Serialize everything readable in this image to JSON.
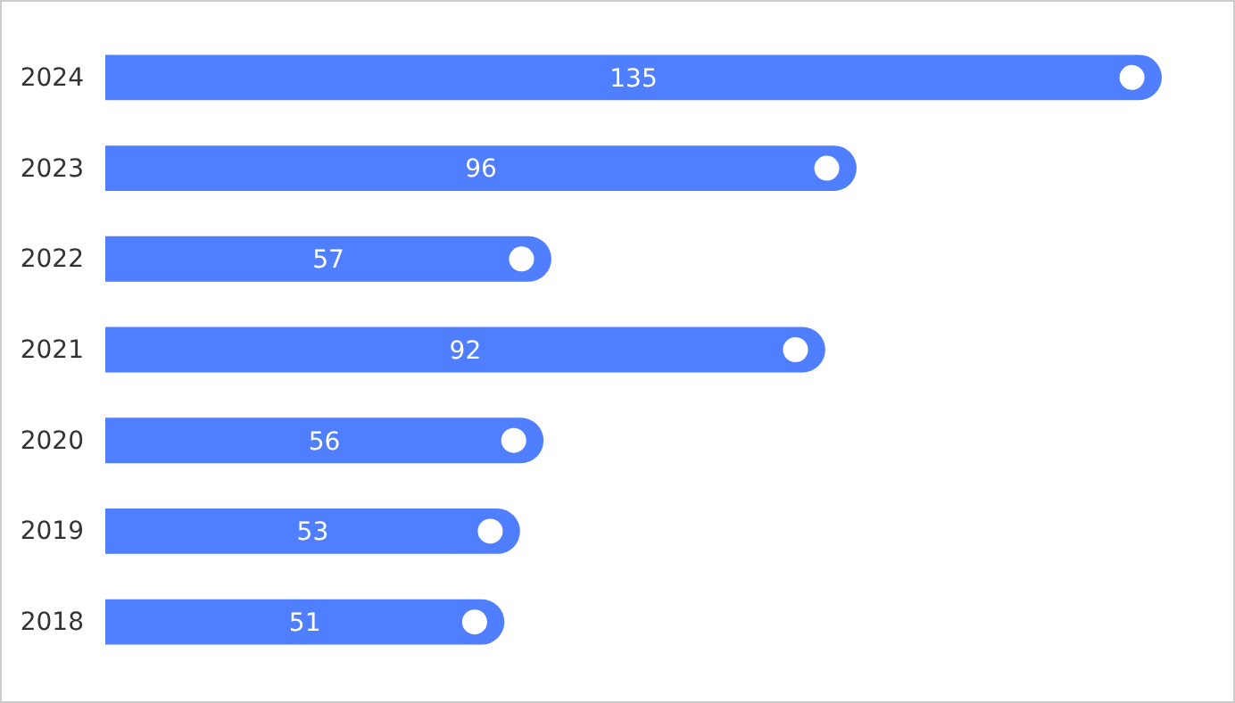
{
  "chart_data": {
    "type": "bar",
    "orientation": "horizontal",
    "categories": [
      "2024",
      "2023",
      "2022",
      "2021",
      "2020",
      "2019",
      "2018"
    ],
    "values": [
      135,
      96,
      57,
      92,
      56,
      53,
      51
    ],
    "color": "#4f7fff",
    "data_labels": true
  }
}
